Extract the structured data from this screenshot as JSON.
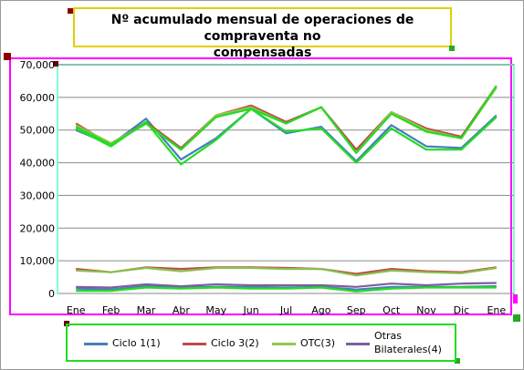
{
  "chart_data": {
    "type": "line",
    "title": "Nº acumulado mensual de operaciones de compraventa no compensadas",
    "categories": [
      "Ene",
      "Feb",
      "Mar",
      "Abr",
      "May",
      "Jun",
      "Jul",
      "Ago",
      "Sep",
      "Oct",
      "Nov",
      "Dic",
      "Ene"
    ],
    "y_ticks": [
      "0",
      "10,000",
      "20,000",
      "30,000",
      "40,000",
      "50,000",
      "60,000",
      "70,000"
    ],
    "ylim": [
      0,
      70000
    ],
    "grid": true,
    "legend_position": "bottom",
    "groups": [
      {
        "name": "Ciclo 1(1)",
        "color": "#4a7ebb",
        "high": [
          50000,
          45500,
          53500,
          41000,
          47500,
          56500,
          49000,
          51000,
          40500,
          51500,
          45000,
          44500,
          54500
        ],
        "low": [
          1500,
          1200,
          2200,
          1800,
          2000,
          2000,
          1800,
          2000,
          1200,
          2000,
          2000,
          2000,
          2200
        ]
      },
      {
        "name": "Ciclo 3(2)",
        "color": "#be4b48",
        "high": [
          52000,
          45500,
          52500,
          44500,
          54500,
          57500,
          52500,
          57000,
          44000,
          55500,
          50500,
          48000,
          63500
        ],
        "low": [
          7500,
          6500,
          8000,
          7500,
          8000,
          8000,
          7800,
          7500,
          6000,
          7500,
          6800,
          6500,
          8000
        ]
      },
      {
        "name": "OTC(3)",
        "color": "#98c454",
        "high": [
          51500,
          46000,
          52000,
          44000,
          54500,
          57000,
          52000,
          57000,
          43000,
          55500,
          50000,
          47500,
          63000
        ],
        "low": [
          7000,
          6500,
          7800,
          6800,
          7800,
          7800,
          7500,
          7500,
          5500,
          7000,
          6500,
          6200,
          7800
        ]
      },
      {
        "name": "Otras Bilaterales(4)",
        "color": "#7d5fa0",
        "high": [
          null
        ],
        "low": [
          2000,
          1800,
          2800,
          2200,
          2800,
          2500,
          2500,
          2500,
          2000,
          3000,
          2500,
          3000,
          3200
        ]
      }
    ],
    "extra_overlay": {
      "color": "#22dd22",
      "high": [
        50500,
        45000,
        52500,
        39500,
        47000,
        56500,
        49500,
        50500,
        40000,
        50500,
        44000,
        44000,
        54000
      ],
      "mid": [
        51000,
        45500,
        52000,
        44000,
        54000,
        56500,
        52000,
        57000,
        43000,
        55000,
        49500,
        47500,
        63500
      ],
      "low": [
        800,
        800,
        1800,
        1500,
        1800,
        1500,
        1500,
        1800,
        600,
        1500,
        1800,
        1800,
        1800
      ]
    }
  }
}
